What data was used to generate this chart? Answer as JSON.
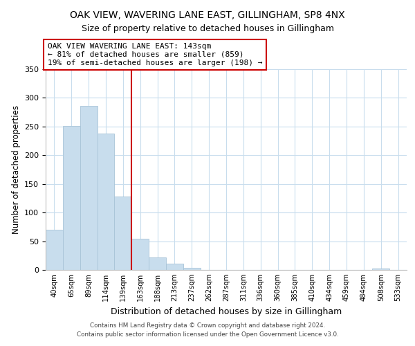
{
  "title": "OAK VIEW, WAVERING LANE EAST, GILLINGHAM, SP8 4NX",
  "subtitle": "Size of property relative to detached houses in Gillingham",
  "xlabel": "Distribution of detached houses by size in Gillingham",
  "ylabel": "Number of detached properties",
  "bar_labels": [
    "40sqm",
    "65sqm",
    "89sqm",
    "114sqm",
    "139sqm",
    "163sqm",
    "188sqm",
    "213sqm",
    "237sqm",
    "262sqm",
    "287sqm",
    "311sqm",
    "336sqm",
    "360sqm",
    "385sqm",
    "410sqm",
    "434sqm",
    "459sqm",
    "484sqm",
    "508sqm",
    "533sqm"
  ],
  "bar_heights": [
    70,
    251,
    286,
    238,
    128,
    54,
    22,
    11,
    4,
    0,
    0,
    0,
    0,
    0,
    0,
    0,
    0,
    0,
    0,
    2,
    0
  ],
  "bar_color": "#c8dded",
  "bar_edge_color": "#a8c4d8",
  "marker_line_index": 4,
  "marker_line_color": "#cc0000",
  "ylim": [
    0,
    350
  ],
  "yticks": [
    0,
    50,
    100,
    150,
    200,
    250,
    300,
    350
  ],
  "annotation_title": "OAK VIEW WAVERING LANE EAST: 143sqm",
  "annotation_line1": "← 81% of detached houses are smaller (859)",
  "annotation_line2": "19% of semi-detached houses are larger (198) →",
  "footer_line1": "Contains HM Land Registry data © Crown copyright and database right 2024.",
  "footer_line2": "Contains public sector information licensed under the Open Government Licence v3.0.",
  "background_color": "#ffffff",
  "grid_color": "#c8dded",
  "title_fontsize": 10,
  "subtitle_fontsize": 9,
  "ylabel_fontsize": 8.5,
  "xlabel_fontsize": 9
}
